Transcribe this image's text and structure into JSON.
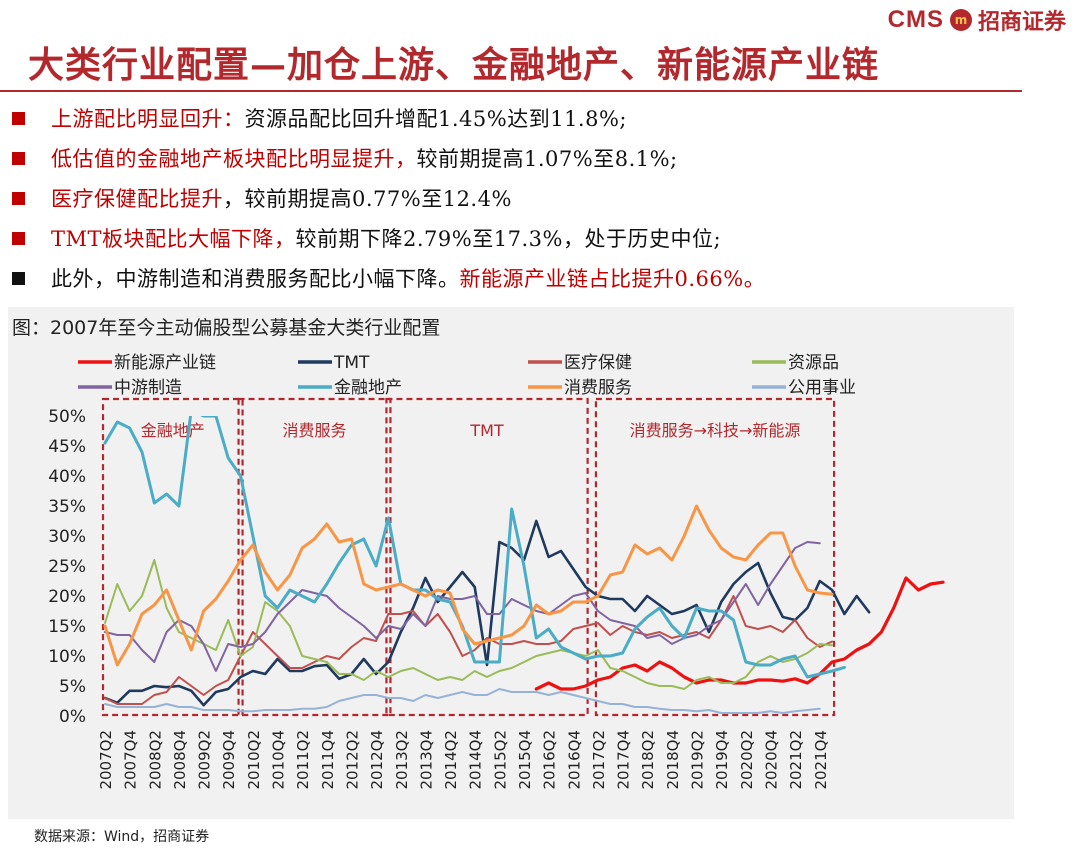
{
  "brand": {
    "cms": "CMS",
    "mark": "m",
    "cn": "招商证券"
  },
  "title": "大类行业配置—加仓上游、金融地产、新能源产业链",
  "bullets": [
    {
      "color": "red",
      "hl": "上游配比明显回升：",
      "text": "资源品配比回升增配1.45%达到11.8%;",
      "tail": ""
    },
    {
      "color": "red",
      "hl": "低估值的金融地产板块配比明显提升，",
      "text": "较前期提高1.07%至8.1%;",
      "tail": ""
    },
    {
      "color": "red",
      "hl": "医疗保健配比提升",
      "text": "，较前期提高0.77%至12.4%",
      "tail": ""
    },
    {
      "color": "red",
      "hl": "TMT板块配比大幅下降，",
      "text": "较前期下降2.79%至17.3%，处于历史中位;",
      "tail": ""
    },
    {
      "color": "black",
      "hl": "",
      "text": "此外，中游制造和消费服务配比小幅下降。",
      "tail": "新能源产业链占比提升0.66%。"
    }
  ],
  "caption": "图：2007年至今主动偏股型公募基金大类行业配置",
  "source": "数据来源：Wind，招商证券",
  "chart_data": {
    "type": "line",
    "title": "2007年至今主动偏股型公募基金大类行业配置",
    "ylim": [
      0,
      50
    ],
    "y_ticks": [
      "0%",
      "5%",
      "10%",
      "15%",
      "20%",
      "25%",
      "30%",
      "35%",
      "40%",
      "45%",
      "50%"
    ],
    "x_tick_labels": [
      "2007Q2",
      "2007Q4",
      "2008Q2",
      "2008Q4",
      "2009Q2",
      "2009Q4",
      "2010Q2",
      "2010Q4",
      "2011Q2",
      "2011Q4",
      "2012Q2",
      "2012Q4",
      "2013Q2",
      "2013Q4",
      "2014Q2",
      "2014Q4",
      "2015Q2",
      "2015Q4",
      "2016Q2",
      "2016Q4",
      "2017Q2",
      "2017Q4",
      "2018Q2",
      "2018Q4",
      "2019Q2",
      "2019Q4",
      "2020Q2",
      "2020Q4",
      "2021Q2",
      "2021Q4"
    ],
    "regions": [
      {
        "label": "金融地产",
        "from": 0,
        "to": 11
      },
      {
        "label": "消费服务",
        "from": 11,
        "to": 23
      },
      {
        "label": "TMT",
        "from": 23,
        "to": 39
      },
      {
        "label": "消费服务→科技→新能源",
        "from": 40,
        "to": 59
      }
    ],
    "series": [
      {
        "name": "新能源产业链",
        "color": "#ee1111",
        "width": 3.2,
        "start": 35,
        "values": [
          4.5,
          5.5,
          4.5,
          4.5,
          5.0,
          6.0,
          6.5,
          8.0,
          8.5,
          7.5,
          9.0,
          8.0,
          6.5,
          5.5,
          6.0,
          6.0,
          5.5,
          5.5,
          6.0,
          6.0,
          5.8,
          6.2,
          5.5,
          7.0,
          9.0,
          9.5,
          11.0,
          12.0,
          14.0,
          18.0,
          23.0,
          21.0,
          22.0,
          22.3
        ]
      },
      {
        "name": "TMT",
        "color": "#1f3a5f",
        "width": 2.6,
        "start": 0,
        "values": [
          3.0,
          2.2,
          4.2,
          4.2,
          5.0,
          4.8,
          5.0,
          4.2,
          1.8,
          4.0,
          4.5,
          6.5,
          7.5,
          7.0,
          9.5,
          7.5,
          7.5,
          8.3,
          8.5,
          6.2,
          7.0,
          9.5,
          7.0,
          9.0,
          14.0,
          18.0,
          23.0,
          19.0,
          21.5,
          24.0,
          21.5,
          8.5,
          29.0,
          28.0,
          26.0,
          32.5,
          26.5,
          27.5,
          24.5,
          21.5,
          20.0,
          19.5,
          19.5,
          17.5,
          20.0,
          18.5,
          17.0,
          17.5,
          18.5,
          14.0,
          19.0,
          22.0,
          24.0,
          25.5,
          20.5,
          16.5,
          16.0,
          18.0,
          22.5,
          21.0,
          17.0,
          20.0,
          17.3
        ]
      },
      {
        "name": "医疗保健",
        "color": "#c0504d",
        "width": 2.0,
        "start": 0,
        "values": [
          3.0,
          2.0,
          2.0,
          2.0,
          3.5,
          4.0,
          6.5,
          5.0,
          3.5,
          5.0,
          6.0,
          10.0,
          14.0,
          12.0,
          10.0,
          8.0,
          8.0,
          9.0,
          10.0,
          9.5,
          11.5,
          13.0,
          12.5,
          17.0,
          17.0,
          17.5,
          15.0,
          17.0,
          14.0,
          10.0,
          11.0,
          13.0,
          12.0,
          12.0,
          12.5,
          12.0,
          12.0,
          12.5,
          14.5,
          15.0,
          15.5,
          13.5,
          15.0,
          14.0,
          13.5,
          14.0,
          13.0,
          13.5,
          14.0,
          13.0,
          16.0,
          20.0,
          15.0,
          14.5,
          15.0,
          14.0,
          16.0,
          13.0,
          11.5,
          12.4
        ]
      },
      {
        "name": "资源品",
        "color": "#9bbb59",
        "width": 2.0,
        "start": 0,
        "values": [
          15.5,
          22.0,
          17.5,
          20.0,
          26.0,
          18.0,
          14.0,
          13.0,
          12.0,
          11.0,
          16.0,
          10.0,
          11.5,
          19.0,
          17.5,
          15.0,
          10.0,
          9.5,
          9.0,
          7.0,
          7.0,
          6.0,
          7.5,
          6.5,
          7.5,
          8.0,
          7.0,
          6.0,
          6.5,
          6.0,
          7.5,
          6.5,
          7.5,
          8.0,
          9.0,
          10.0,
          10.5,
          11.0,
          10.5,
          10.0,
          11.0,
          8.0,
          7.5,
          6.5,
          5.5,
          5.0,
          5.0,
          4.5,
          6.0,
          6.5,
          5.5,
          5.5,
          6.5,
          9.0,
          10.0,
          9.0,
          9.5,
          10.5,
          12.0,
          11.8
        ]
      },
      {
        "name": "中游制造",
        "color": "#8064a2",
        "width": 2.0,
        "start": 0,
        "values": [
          14.0,
          13.5,
          13.5,
          11.0,
          9.0,
          14.0,
          16.0,
          15.0,
          12.0,
          7.5,
          12.0,
          11.5,
          12.0,
          14.0,
          17.0,
          19.0,
          21.0,
          20.5,
          20.0,
          18.0,
          16.5,
          15.0,
          13.0,
          15.0,
          14.5,
          17.0,
          15.0,
          20.0,
          19.5,
          19.5,
          20.0,
          17.0,
          17.0,
          19.5,
          18.5,
          17.5,
          17.0,
          18.5,
          20.0,
          20.5,
          17.5,
          16.0,
          15.5,
          15.0,
          13.0,
          13.5,
          12.0,
          13.0,
          13.5,
          15.0,
          16.0,
          19.0,
          22.0,
          18.5,
          22.0,
          25.0,
          28.0,
          29.0,
          28.8
        ]
      },
      {
        "name": "金融地产",
        "color": "#4bacc6",
        "width": 3.0,
        "start": 0,
        "values": [
          45.5,
          49.0,
          48.0,
          44.0,
          35.5,
          37.0,
          35.0,
          51.0,
          50.0,
          50.0,
          43.0,
          40.0,
          30.0,
          20.0,
          18.0,
          21.0,
          20.0,
          19.0,
          22.0,
          25.5,
          28.5,
          29.5,
          25.0,
          33.0,
          22.0,
          21.0,
          21.0,
          19.5,
          19.0,
          15.0,
          9.0,
          9.0,
          9.0,
          34.5,
          25.0,
          13.0,
          14.5,
          11.5,
          10.5,
          9.5,
          10.0,
          10.0,
          10.5,
          14.5,
          16.5,
          18.0,
          15.0,
          13.0,
          18.0,
          17.5,
          17.5,
          16.0,
          9.0,
          8.5,
          8.5,
          9.5,
          10.0,
          6.5,
          7.0,
          7.5,
          8.1
        ]
      },
      {
        "name": "消费服务",
        "color": "#f79646",
        "width": 3.0,
        "start": 0,
        "values": [
          15.0,
          8.5,
          12.0,
          17.0,
          18.5,
          21.0,
          16.0,
          11.0,
          17.5,
          19.5,
          22.5,
          26.0,
          28.5,
          24.0,
          21.0,
          23.5,
          28.0,
          29.5,
          32.0,
          29.0,
          29.5,
          22.0,
          21.0,
          21.5,
          22.0,
          21.0,
          20.0,
          21.0,
          20.5,
          14.5,
          12.0,
          12.5,
          13.0,
          13.5,
          15.0,
          18.5,
          17.0,
          17.5,
          19.0,
          19.0,
          20.0,
          23.5,
          24.0,
          28.5,
          27.0,
          28.0,
          26.0,
          30.0,
          35.0,
          31.0,
          28.0,
          26.5,
          26.0,
          28.5,
          30.5,
          30.5,
          25.0,
          21.0,
          20.5,
          20.3
        ]
      },
      {
        "name": "公用事业",
        "color": "#95b3d7",
        "width": 2.0,
        "start": 0,
        "values": [
          2.0,
          1.5,
          1.5,
          1.5,
          1.5,
          2.0,
          1.5,
          1.5,
          1.0,
          1.0,
          1.0,
          0.8,
          0.8,
          1.0,
          1.0,
          1.0,
          1.2,
          1.2,
          1.5,
          2.5,
          3.0,
          3.5,
          3.5,
          3.0,
          3.0,
          2.5,
          3.5,
          3.0,
          3.5,
          4.0,
          3.5,
          3.5,
          4.5,
          4.0,
          4.0,
          4.0,
          3.5,
          4.0,
          3.5,
          3.0,
          2.5,
          2.0,
          2.0,
          1.5,
          1.5,
          1.2,
          1.0,
          1.0,
          0.8,
          1.0,
          0.5,
          0.5,
          0.5,
          0.5,
          0.8,
          0.5,
          0.8,
          1.0,
          1.2
        ]
      }
    ]
  }
}
